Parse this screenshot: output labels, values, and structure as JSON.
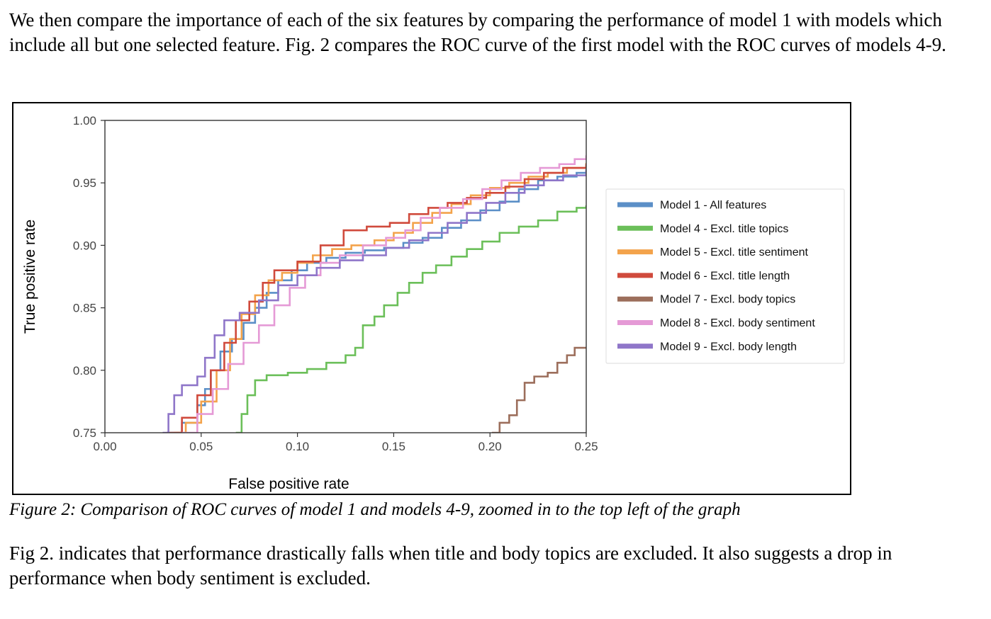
{
  "paragraphs": {
    "intro": "We then compare the importance of each of the six features by comparing the performance of model 1 with models which include all but one selected feature. Fig. 2 compares the ROC curve of the first model with the ROC curves of models 4-9.",
    "conclusion": "Fig 2. indicates that performance drastically falls when title and body topics are excluded. It also suggests a drop in performance when body sentiment is excluded."
  },
  "figure": {
    "caption": "Figure 2: Comparison of ROC curves of model 1 and models 4-9, zoomed in to the top left of the graph"
  },
  "chart_data": {
    "type": "line",
    "xlabel": "False positive rate",
    "ylabel": "True positive rate",
    "xlim": [
      0.0,
      0.25
    ],
    "ylim": [
      0.75,
      1.0
    ],
    "xticks": [
      "0.00",
      "0.05",
      "0.10",
      "0.15",
      "0.20",
      "0.25"
    ],
    "yticks": [
      "0.75",
      "0.80",
      "0.85",
      "0.90",
      "0.95",
      "1.00"
    ],
    "legend_position": "right",
    "grid": false,
    "series": [
      {
        "name": "Model 1 - All features",
        "color": "#5b8fc7",
        "points": [
          [
            0.033,
            0.75
          ],
          [
            0.04,
            0.758
          ],
          [
            0.048,
            0.772
          ],
          [
            0.052,
            0.785
          ],
          [
            0.055,
            0.8
          ],
          [
            0.06,
            0.815
          ],
          [
            0.066,
            0.825
          ],
          [
            0.072,
            0.838
          ],
          [
            0.078,
            0.85
          ],
          [
            0.084,
            0.862
          ],
          [
            0.09,
            0.872
          ],
          [
            0.097,
            0.88
          ],
          [
            0.105,
            0.886
          ],
          [
            0.115,
            0.89
          ],
          [
            0.125,
            0.894
          ],
          [
            0.135,
            0.896
          ],
          [
            0.145,
            0.898
          ],
          [
            0.155,
            0.902
          ],
          [
            0.165,
            0.906
          ],
          [
            0.175,
            0.914
          ],
          [
            0.185,
            0.92
          ],
          [
            0.195,
            0.928
          ],
          [
            0.205,
            0.935
          ],
          [
            0.215,
            0.945
          ],
          [
            0.225,
            0.952
          ],
          [
            0.235,
            0.955
          ],
          [
            0.245,
            0.958
          ],
          [
            0.25,
            0.961
          ]
        ]
      },
      {
        "name": "Model 4 - Excl. title topics",
        "color": "#6bbf59",
        "points": [
          [
            0.068,
            0.75
          ],
          [
            0.071,
            0.765
          ],
          [
            0.074,
            0.78
          ],
          [
            0.078,
            0.792
          ],
          [
            0.084,
            0.796
          ],
          [
            0.095,
            0.798
          ],
          [
            0.105,
            0.801
          ],
          [
            0.115,
            0.806
          ],
          [
            0.125,
            0.812
          ],
          [
            0.13,
            0.818
          ],
          [
            0.134,
            0.836
          ],
          [
            0.14,
            0.843
          ],
          [
            0.145,
            0.852
          ],
          [
            0.152,
            0.862
          ],
          [
            0.158,
            0.87
          ],
          [
            0.165,
            0.878
          ],
          [
            0.172,
            0.884
          ],
          [
            0.18,
            0.891
          ],
          [
            0.188,
            0.897
          ],
          [
            0.196,
            0.903
          ],
          [
            0.205,
            0.91
          ],
          [
            0.215,
            0.915
          ],
          [
            0.225,
            0.92
          ],
          [
            0.235,
            0.927
          ],
          [
            0.245,
            0.93
          ],
          [
            0.25,
            0.932
          ]
        ]
      },
      {
        "name": "Model 5 - Excl. title sentiment",
        "color": "#f3a34b",
        "points": [
          [
            0.036,
            0.75
          ],
          [
            0.042,
            0.758
          ],
          [
            0.05,
            0.775
          ],
          [
            0.058,
            0.8
          ],
          [
            0.065,
            0.825
          ],
          [
            0.071,
            0.845
          ],
          [
            0.078,
            0.86
          ],
          [
            0.085,
            0.872
          ],
          [
            0.092,
            0.878
          ],
          [
            0.1,
            0.886
          ],
          [
            0.108,
            0.892
          ],
          [
            0.118,
            0.897
          ],
          [
            0.128,
            0.9
          ],
          [
            0.14,
            0.904
          ],
          [
            0.15,
            0.91
          ],
          [
            0.16,
            0.918
          ],
          [
            0.17,
            0.926
          ],
          [
            0.18,
            0.933
          ],
          [
            0.19,
            0.94
          ],
          [
            0.2,
            0.946
          ],
          [
            0.21,
            0.95
          ],
          [
            0.22,
            0.955
          ],
          [
            0.23,
            0.958
          ],
          [
            0.24,
            0.962
          ],
          [
            0.25,
            0.966
          ]
        ]
      },
      {
        "name": "Model 6 - Excl. title length",
        "color": "#d04a3c",
        "points": [
          [
            0.032,
            0.75
          ],
          [
            0.04,
            0.762
          ],
          [
            0.048,
            0.78
          ],
          [
            0.055,
            0.8
          ],
          [
            0.062,
            0.822
          ],
          [
            0.068,
            0.84
          ],
          [
            0.075,
            0.855
          ],
          [
            0.082,
            0.87
          ],
          [
            0.088,
            0.88
          ],
          [
            0.1,
            0.887
          ],
          [
            0.112,
            0.9
          ],
          [
            0.124,
            0.912
          ],
          [
            0.136,
            0.915
          ],
          [
            0.148,
            0.918
          ],
          [
            0.158,
            0.925
          ],
          [
            0.168,
            0.93
          ],
          [
            0.178,
            0.934
          ],
          [
            0.188,
            0.938
          ],
          [
            0.198,
            0.942
          ],
          [
            0.208,
            0.947
          ],
          [
            0.218,
            0.953
          ],
          [
            0.228,
            0.958
          ],
          [
            0.238,
            0.962
          ],
          [
            0.25,
            0.965
          ]
        ]
      },
      {
        "name": "Model 7 - Excl. body topics",
        "color": "#9c6e5b",
        "points": [
          [
            0.201,
            0.75
          ],
          [
            0.205,
            0.758
          ],
          [
            0.21,
            0.764
          ],
          [
            0.214,
            0.776
          ],
          [
            0.218,
            0.79
          ],
          [
            0.223,
            0.795
          ],
          [
            0.23,
            0.798
          ],
          [
            0.235,
            0.806
          ],
          [
            0.24,
            0.812
          ],
          [
            0.244,
            0.818
          ],
          [
            0.25,
            0.818
          ]
        ]
      },
      {
        "name": "Model 8 - Excl. body sentiment",
        "color": "#e59ad6",
        "points": [
          [
            0.04,
            0.75
          ],
          [
            0.048,
            0.765
          ],
          [
            0.056,
            0.785
          ],
          [
            0.064,
            0.805
          ],
          [
            0.072,
            0.822
          ],
          [
            0.08,
            0.836
          ],
          [
            0.088,
            0.852
          ],
          [
            0.096,
            0.866
          ],
          [
            0.104,
            0.876
          ],
          [
            0.112,
            0.886
          ],
          [
            0.122,
            0.892
          ],
          [
            0.134,
            0.9
          ],
          [
            0.146,
            0.906
          ],
          [
            0.156,
            0.912
          ],
          [
            0.164,
            0.922
          ],
          [
            0.174,
            0.93
          ],
          [
            0.186,
            0.937
          ],
          [
            0.196,
            0.945
          ],
          [
            0.206,
            0.952
          ],
          [
            0.216,
            0.958
          ],
          [
            0.226,
            0.962
          ],
          [
            0.236,
            0.965
          ],
          [
            0.244,
            0.969
          ],
          [
            0.25,
            0.972
          ]
        ]
      },
      {
        "name": "Model 9 - Excl. body length",
        "color": "#8f76c9",
        "points": [
          [
            0.03,
            0.75
          ],
          [
            0.033,
            0.765
          ],
          [
            0.036,
            0.78
          ],
          [
            0.04,
            0.788
          ],
          [
            0.048,
            0.795
          ],
          [
            0.052,
            0.81
          ],
          [
            0.057,
            0.828
          ],
          [
            0.062,
            0.84
          ],
          [
            0.07,
            0.846
          ],
          [
            0.08,
            0.856
          ],
          [
            0.09,
            0.868
          ],
          [
            0.1,
            0.876
          ],
          [
            0.11,
            0.882
          ],
          [
            0.122,
            0.888
          ],
          [
            0.134,
            0.892
          ],
          [
            0.146,
            0.898
          ],
          [
            0.158,
            0.904
          ],
          [
            0.168,
            0.91
          ],
          [
            0.178,
            0.918
          ],
          [
            0.188,
            0.926
          ],
          [
            0.198,
            0.934
          ],
          [
            0.208,
            0.942
          ],
          [
            0.218,
            0.948
          ],
          [
            0.228,
            0.952
          ],
          [
            0.238,
            0.956
          ],
          [
            0.25,
            0.96
          ]
        ]
      }
    ]
  }
}
